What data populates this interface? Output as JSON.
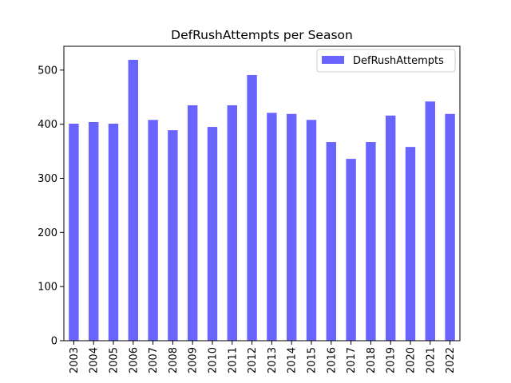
{
  "chart_data": {
    "type": "bar",
    "title": "DefRushAttempts per Season",
    "xlabel": "",
    "ylabel": "",
    "categories": [
      "2003",
      "2004",
      "2005",
      "2006",
      "2007",
      "2008",
      "2009",
      "2010",
      "2011",
      "2012",
      "2013",
      "2014",
      "2015",
      "2016",
      "2017",
      "2018",
      "2019",
      "2020",
      "2021",
      "2022"
    ],
    "series": [
      {
        "name": "DefRushAttempts",
        "color": "#6a64ff",
        "values": [
          401,
          404,
          401,
          519,
          408,
          389,
          435,
          395,
          435,
          491,
          421,
          419,
          408,
          367,
          336,
          367,
          416,
          358,
          442,
          419
        ]
      }
    ],
    "ylim": [
      0,
      544
    ],
    "yticks": [
      "0",
      "100",
      "200",
      "300",
      "400",
      "500"
    ],
    "legend": "top-right",
    "grid": false
  }
}
